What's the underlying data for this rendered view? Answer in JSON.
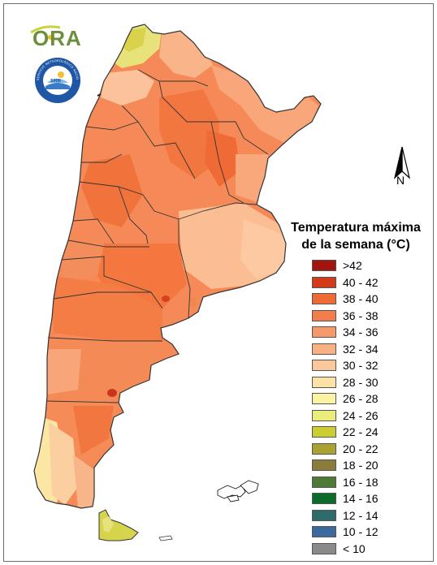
{
  "logo": {
    "text": "ORA"
  },
  "seal": {
    "text": "SERVICIO METEOROLÓGICO NACIONAL • ARGENTINA",
    "inner": "SMN"
  },
  "compass": {
    "label": "N"
  },
  "legend": {
    "title_line1": "Temperatura máxima",
    "title_line2": "de la semana (°C)",
    "items": [
      {
        "label": ">42",
        "color": "#a3140f"
      },
      {
        "label": "40 - 42",
        "color": "#d23a1a"
      },
      {
        "label": "38 - 40",
        "color": "#ef6a35"
      },
      {
        "label": "36 - 38",
        "color": "#f37e4c"
      },
      {
        "label": "34 - 36",
        "color": "#f6996a"
      },
      {
        "label": "32 - 34",
        "color": "#f8b183"
      },
      {
        "label": "30 - 32",
        "color": "#fbc79c"
      },
      {
        "label": "28 - 30",
        "color": "#fde2a6"
      },
      {
        "label": "26 - 28",
        "color": "#fbf3a4"
      },
      {
        "label": "24 - 26",
        "color": "#ecec7c"
      },
      {
        "label": "22 - 24",
        "color": "#cccc33"
      },
      {
        "label": "20 - 22",
        "color": "#a8a230"
      },
      {
        "label": "18 - 20",
        "color": "#8c7c3a"
      },
      {
        "label": "16 - 18",
        "color": "#4f7a35"
      },
      {
        "label": "14 - 16",
        "color": "#0a6b2a"
      },
      {
        "label": "12 - 14",
        "color": "#2e6b6b"
      },
      {
        "label": "10 - 12",
        "color": "#3a6aa0"
      },
      {
        "label": "< 10",
        "color": "#8a8a8a"
      }
    ]
  }
}
